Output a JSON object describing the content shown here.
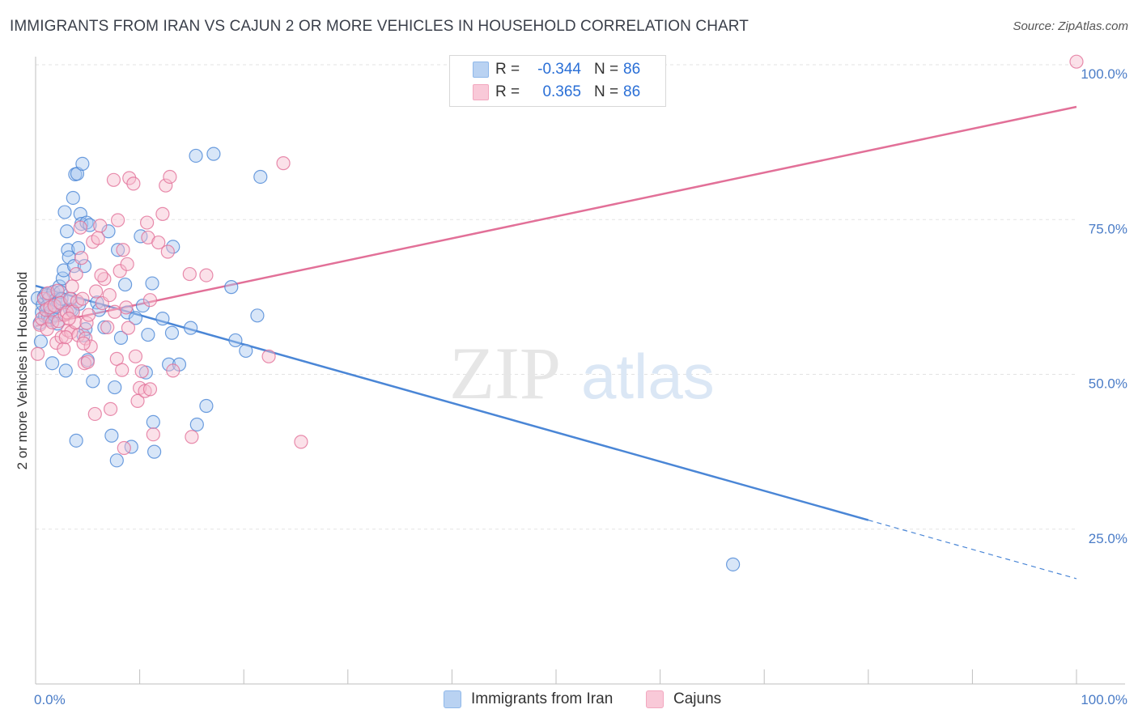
{
  "header": {
    "title": "IMMIGRANTS FROM IRAN VS CAJUN 2 OR MORE VEHICLES IN HOUSEHOLD CORRELATION CHART",
    "source": "Source: ZipAtlas.com"
  },
  "watermark": {
    "zip": "ZIP",
    "atlas": "atlas"
  },
  "legend": {
    "rows": [
      {
        "r_label": "R =",
        "r_value": "-0.344",
        "n_label": "N =",
        "n_value": "86",
        "color": "#8fb8ea"
      },
      {
        "r_label": "R =",
        "r_value": "0.365",
        "n_label": "N =",
        "n_value": "86",
        "color": "#f2a7bf"
      }
    ]
  },
  "bottom_legend": {
    "iran": "Immigrants from Iran",
    "cajuns": "Cajuns"
  },
  "chart_data": {
    "type": "scatter",
    "title": "IMMIGRANTS FROM IRAN VS CAJUN 2 OR MORE VEHICLES IN HOUSEHOLD CORRELATION CHART",
    "xlabel": "",
    "ylabel": "2 or more Vehicles in Household",
    "xlim": [
      0,
      100
    ],
    "ylim": [
      0,
      102
    ],
    "x_tick_labels": [
      "0.0%",
      "100.0%"
    ],
    "y_ticks": [
      25,
      50,
      75,
      100
    ],
    "y_tick_labels": [
      "25.0%",
      "50.0%",
      "75.0%",
      "100.0%"
    ],
    "grid": true,
    "series": [
      {
        "name": "Immigrants from Iran",
        "color": "#4a86d6",
        "fill": "#a9c8ef",
        "trend": {
          "x0": 0,
          "y0": 64.3,
          "x1": 100,
          "y1": 17.0,
          "solid_until": 80
        },
        "points": [
          [
            0.2,
            62.3
          ],
          [
            0.4,
            58.3
          ],
          [
            0.5,
            55.3
          ],
          [
            0.6,
            60.0
          ],
          [
            0.7,
            61.3
          ],
          [
            0.8,
            62.5
          ],
          [
            0.9,
            59.4
          ],
          [
            1.0,
            63.0
          ],
          [
            1.1,
            61.0
          ],
          [
            1.2,
            59.3
          ],
          [
            1.3,
            62.3
          ],
          [
            1.4,
            58.8
          ],
          [
            1.5,
            60.2
          ],
          [
            1.6,
            51.8
          ],
          [
            1.7,
            63.3
          ],
          [
            1.8,
            59.6
          ],
          [
            1.9,
            62.0
          ],
          [
            2.0,
            60.9
          ],
          [
            2.1,
            58.2
          ],
          [
            2.2,
            61.7
          ],
          [
            2.3,
            64.2
          ],
          [
            2.4,
            63.3
          ],
          [
            2.5,
            62.2
          ],
          [
            2.6,
            65.5
          ],
          [
            2.7,
            66.8
          ],
          [
            2.8,
            76.2
          ],
          [
            2.9,
            50.6
          ],
          [
            3.0,
            73.1
          ],
          [
            3.1,
            70.1
          ],
          [
            3.2,
            68.9
          ],
          [
            3.3,
            60.5
          ],
          [
            3.4,
            62.2
          ],
          [
            3.5,
            60.4
          ],
          [
            3.6,
            78.5
          ],
          [
            3.7,
            67.5
          ],
          [
            3.8,
            82.3
          ],
          [
            3.9,
            39.3
          ],
          [
            4.0,
            82.4
          ],
          [
            4.1,
            70.4
          ],
          [
            4.2,
            61.4
          ],
          [
            4.3,
            75.9
          ],
          [
            4.4,
            74.3
          ],
          [
            4.5,
            84.0
          ],
          [
            4.6,
            56.3
          ],
          [
            4.7,
            67.5
          ],
          [
            4.8,
            57.3
          ],
          [
            4.9,
            74.5
          ],
          [
            5.0,
            52.3
          ],
          [
            5.2,
            74.1
          ],
          [
            5.5,
            48.9
          ],
          [
            5.9,
            61.6
          ],
          [
            6.1,
            60.4
          ],
          [
            6.6,
            57.6
          ],
          [
            7.0,
            73.1
          ],
          [
            7.3,
            40.1
          ],
          [
            7.6,
            47.9
          ],
          [
            7.8,
            36.1
          ],
          [
            7.9,
            70.1
          ],
          [
            8.2,
            55.9
          ],
          [
            8.6,
            64.5
          ],
          [
            8.8,
            60.0
          ],
          [
            9.2,
            38.3
          ],
          [
            9.6,
            59.1
          ],
          [
            10.1,
            72.3
          ],
          [
            10.3,
            61.1
          ],
          [
            10.8,
            56.4
          ],
          [
            10.6,
            50.3
          ],
          [
            11.2,
            64.7
          ],
          [
            11.4,
            37.5
          ],
          [
            11.3,
            42.3
          ],
          [
            12.2,
            59.0
          ],
          [
            12.8,
            51.6
          ],
          [
            13.1,
            56.7
          ],
          [
            13.2,
            70.6
          ],
          [
            13.8,
            51.6
          ],
          [
            14.9,
            57.5
          ],
          [
            15.5,
            41.9
          ],
          [
            15.4,
            85.3
          ],
          [
            16.4,
            44.9
          ],
          [
            17.1,
            85.6
          ],
          [
            18.8,
            64.1
          ],
          [
            19.2,
            55.5
          ],
          [
            20.2,
            53.8
          ],
          [
            21.3,
            59.5
          ],
          [
            21.6,
            81.9
          ],
          [
            67.0,
            19.3
          ]
        ]
      },
      {
        "name": "Cajuns",
        "color": "#e27098",
        "fill": "#f6bccf",
        "trend": {
          "x0": 0,
          "y0": 57.8,
          "x1": 100,
          "y1": 93.2
        },
        "points": [
          [
            0.2,
            53.3
          ],
          [
            0.4,
            58.0
          ],
          [
            0.6,
            59.0
          ],
          [
            0.8,
            62.2
          ],
          [
            1.0,
            60.4
          ],
          [
            1.1,
            57.3
          ],
          [
            1.2,
            63.1
          ],
          [
            1.4,
            60.8
          ],
          [
            1.6,
            58.4
          ],
          [
            1.8,
            61.1
          ],
          [
            2.0,
            55.1
          ],
          [
            2.1,
            63.5
          ],
          [
            2.2,
            58.6
          ],
          [
            2.4,
            61.5
          ],
          [
            2.5,
            56.0
          ],
          [
            2.7,
            54.1
          ],
          [
            2.8,
            59.6
          ],
          [
            3.0,
            60.0
          ],
          [
            3.1,
            57.1
          ],
          [
            3.3,
            62.2
          ],
          [
            3.4,
            56.8
          ],
          [
            3.5,
            64.2
          ],
          [
            3.6,
            60.1
          ],
          [
            3.8,
            58.4
          ],
          [
            3.9,
            66.2
          ],
          [
            4.0,
            61.8
          ],
          [
            4.1,
            56.3
          ],
          [
            4.3,
            73.7
          ],
          [
            4.4,
            68.8
          ],
          [
            4.5,
            62.2
          ],
          [
            4.7,
            51.8
          ],
          [
            4.8,
            55.8
          ],
          [
            4.9,
            58.3
          ],
          [
            5.1,
            59.6
          ],
          [
            5.3,
            54.5
          ],
          [
            5.5,
            71.4
          ],
          [
            5.7,
            43.6
          ],
          [
            5.8,
            63.4
          ],
          [
            6.2,
            74.0
          ],
          [
            6.0,
            72.0
          ],
          [
            6.4,
            61.5
          ],
          [
            6.6,
            65.4
          ],
          [
            6.9,
            57.6
          ],
          [
            7.1,
            62.8
          ],
          [
            7.2,
            44.4
          ],
          [
            7.6,
            60.1
          ],
          [
            7.8,
            52.5
          ],
          [
            7.9,
            74.9
          ],
          [
            8.1,
            66.7
          ],
          [
            8.3,
            50.7
          ],
          [
            8.4,
            70.1
          ],
          [
            8.5,
            38.1
          ],
          [
            8.7,
            60.8
          ],
          [
            8.8,
            67.8
          ],
          [
            8.9,
            57.5
          ],
          [
            9.0,
            81.7
          ],
          [
            9.4,
            80.8
          ],
          [
            9.8,
            45.7
          ],
          [
            10.0,
            47.8
          ],
          [
            10.2,
            50.5
          ],
          [
            10.5,
            47.3
          ],
          [
            10.7,
            74.5
          ],
          [
            10.8,
            72.1
          ],
          [
            11.0,
            47.6
          ],
          [
            11.3,
            40.3
          ],
          [
            11.8,
            71.3
          ],
          [
            12.2,
            75.9
          ],
          [
            12.5,
            80.5
          ],
          [
            12.7,
            69.8
          ],
          [
            12.9,
            81.9
          ],
          [
            13.2,
            50.6
          ],
          [
            15.0,
            39.9
          ],
          [
            14.8,
            66.2
          ],
          [
            16.4,
            66.0
          ],
          [
            22.4,
            52.9
          ],
          [
            23.8,
            84.1
          ],
          [
            25.5,
            39.1
          ],
          [
            7.5,
            81.4
          ],
          [
            9.6,
            52.9
          ],
          [
            11.0,
            62.0
          ],
          [
            3.2,
            59.0
          ],
          [
            6.3,
            66.0
          ],
          [
            5.0,
            52.0
          ],
          [
            4.6,
            55.0
          ],
          [
            2.9,
            56.0
          ],
          [
            100.0,
            100.5
          ]
        ]
      }
    ]
  }
}
